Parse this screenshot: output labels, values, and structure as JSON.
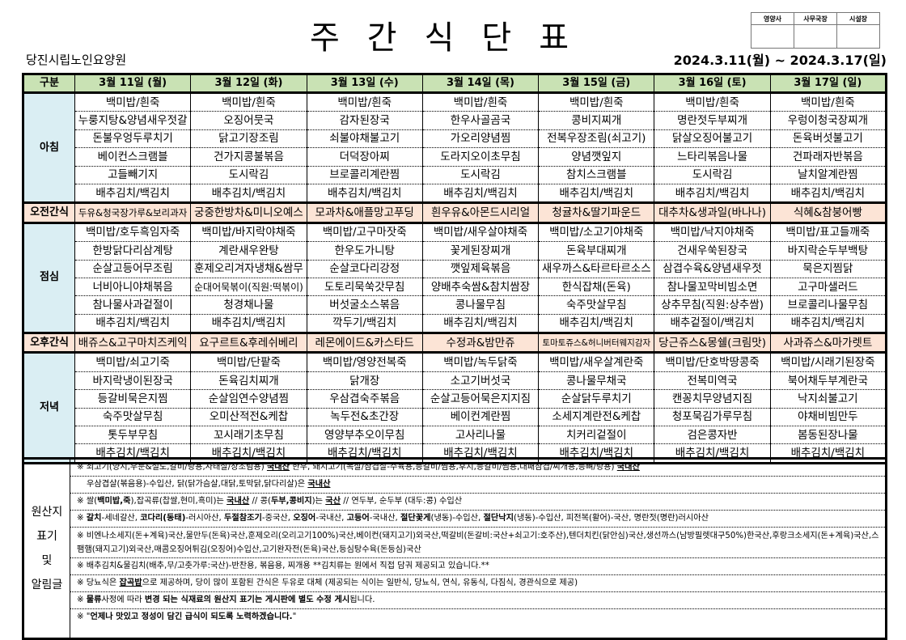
{
  "header": {
    "title": "주간식단표",
    "organization": "당진시립노인요양원",
    "period": "2024.3.11(월) ~ 2024.3.17(일)",
    "approval": [
      "영양사",
      "사무국장",
      "시설장"
    ]
  },
  "table": {
    "corner": "구분",
    "days": [
      "3월 11일 (월)",
      "3월 12일 (화)",
      "3월 13일 (수)",
      "3월 14일 (목)",
      "3월 15일 (금)",
      "3월 16일 (토)",
      "3월 17일 (일)"
    ],
    "sections": [
      {
        "label": "아침",
        "type": "meal",
        "rows": [
          [
            "백미밥/흰죽",
            "백미밥/흰죽",
            "백미밥/흰죽",
            "백미밥/흰죽",
            "백미밥/흰죽",
            "백미밥/흰죽",
            "백미밥/흰죽"
          ],
          [
            "누룽지탕&양념새우젓갈",
            "오징어뭇국",
            "감자된장국",
            "한우사골곰국",
            "콩비지찌개",
            "명란젓두부찌개",
            "우렁이청국장찌개"
          ],
          [
            "돈불우엉두루치기",
            "닭고기장조림",
            "쇠불야채불고기",
            "가오리양념찜",
            "전복우장조림(쇠고기)",
            "닭살오징어불고기",
            "돈육버섯불고기"
          ],
          [
            "베이컨스크램블",
            "건가지콩불볶음",
            "더덕장아찌",
            "도라지오이초무침",
            "양념깻잎지",
            "느타리볶음나물",
            "건파래자반볶음"
          ],
          [
            "고들빼기지",
            "도시락김",
            "브로콜리계란찜",
            "도시락김",
            "참치스크램블",
            "도시락김",
            "날치알계란찜"
          ],
          [
            "배추김치/백김치",
            "배추김치/백김치",
            "배추김치/백김치",
            "배추김치/백김치",
            "배추김치/백김치",
            "배추김치/백김치",
            "배추김치/백김치"
          ]
        ]
      },
      {
        "label": "오전간식",
        "type": "snack",
        "rows": [
          [
            "두유&청국장가루&보리과자",
            "궁중한방차&미니오예스",
            "모과차&애플망고푸딩",
            "흰우유&아몬드시리얼",
            "청귤차&딸기파운드",
            "대추차&생과일(바나나)",
            "식혜&참붕어빵"
          ]
        ]
      },
      {
        "label": "점심",
        "type": "meal",
        "rows": [
          [
            "백미밥/호두흑임자죽",
            "백미밥/바지락야채죽",
            "백미밥/고구마잣죽",
            "백미밥/새우살야채죽",
            "백미밥/소고기야채죽",
            "백미밥/낙지야채죽",
            "백미밥/표고들깨죽"
          ],
          [
            "한방닭다리삼계탕",
            "계란새우완탕",
            "한우도가니탕",
            "꽃게된장찌개",
            "돈육부대찌개",
            "건새우쑥된장국",
            "바지락순두부백탕"
          ],
          [
            "순살고등어무조림",
            "훈제오리겨자냉채&쌈무",
            "순살코다리강정",
            "깻잎제육볶음",
            "새우까스&타르타르소스",
            "삼겹수육&양념새우젓",
            "묵은지찜닭"
          ],
          [
            "너비아니야채볶음",
            "순대어묵볶이(직원:떡볶이)",
            "도토리묵쑥갓무침",
            "양배추숙쌈&참치쌈장",
            "한식잡채(돈육)",
            "참나물꼬막비빔소면",
            "고구마샐러드"
          ],
          [
            "참나물사과겉절이",
            "청경채나물",
            "버섯굴소스볶음",
            "콩나물무침",
            "숙주맛살무침",
            "상추무침(직원:상추쌈)",
            "브로콜리나물무침"
          ],
          [
            "배추김치/백김치",
            "배추김치/백김치",
            "깍두기/백김치",
            "배추김치/백김치",
            "배추김치/백김치",
            "배추겉절이/백김치",
            "배추김치/백김치"
          ]
        ]
      },
      {
        "label": "오후간식",
        "type": "snack",
        "rows": [
          [
            "배쥬스&고구마치즈케익",
            "요구르트&후레쉬베리",
            "레몬에이드&카스타드",
            "수정과&밤만쥬",
            "토마토쥬스&허니버터웨지감자",
            "당근쥬스&몽쉘(크림맛)",
            "사과쥬스&마가렛트"
          ]
        ]
      },
      {
        "label": "저녁",
        "type": "meal",
        "rows": [
          [
            "백미밥/쇠고기죽",
            "백미밥/단팥죽",
            "백미밥/영양전복죽",
            "백미밥/녹두닭죽",
            "백미밥/새우살계란죽",
            "백미밥/단호박땅콩죽",
            "백미밥/시래기된장죽"
          ],
          [
            "바지락냉이된장국",
            "돈육김치찌개",
            "닭개장",
            "소고기버섯국",
            "콩나물무채국",
            "전복미역국",
            "북어채두부계란국"
          ],
          [
            "등갈비묵은지찜",
            "순살임연수양념찜",
            "우삼겹숙주볶음",
            "순살고등어묵은지지짐",
            "순살닭두루치기",
            "캔꽁치무양념지짐",
            "낙지쇠불고기"
          ],
          [
            "숙주맛살무침",
            "오미산적전&케찹",
            "녹두전&초간장",
            "베이컨계란찜",
            "소세지계란전&케찹",
            "청포묵김가루무침",
            "야채비빔만두"
          ],
          [
            "톳두부무침",
            "꼬시래기초무침",
            "영양부추오이무침",
            "고사리나물",
            "치커리겉절이",
            "검은콩자반",
            "봄동된장나물"
          ],
          [
            "배추김치/백김치",
            "배추김치/백김치",
            "배추김치/백김치",
            "배추김치/백김치",
            "배추김치/백김치",
            "배추김치/백김치",
            "배추김치/백김치"
          ]
        ]
      }
    ]
  },
  "notes": {
    "label": [
      "원산지",
      "표기",
      "및",
      "알림글"
    ],
    "lines": [
      {
        "style": "",
        "segs": [
          {
            "t": "※ 쇠고기(양지,우둔&설도,갈비/탕용,사태살/장조림용) "
          },
          {
            "t": "국내산",
            "b": true,
            "u": true
          },
          {
            "t": " 한우, 돼지고기(목살/삼겹살-수육용,등갈비/찜용,후지,등갈비/찜용,대패삼겹/찌개용,등뼈/탕용) "
          },
          {
            "t": "국내산",
            "b": true,
            "u": true
          }
        ]
      },
      {
        "style": "ind",
        "segs": [
          {
            "t": "우삼겹살(볶음용)-수입산, 닭(닭가슴살,대닭,토막닭,닭다리살)은 "
          },
          {
            "t": "국내산",
            "b": true,
            "u": true
          }
        ]
      },
      {
        "style": "",
        "segs": [
          {
            "t": "※ 쌀("
          },
          {
            "t": "백미밥,죽",
            "b": true
          },
          {
            "t": "),잡곡류(찹쌀,현미,흑미)는 "
          },
          {
            "t": "국내산",
            "b": true,
            "u": true
          },
          {
            "t": "  // 콩("
          },
          {
            "t": "두부,콩비지",
            "b": true
          },
          {
            "t": ")는 "
          },
          {
            "t": "국산",
            "b": true,
            "u": true
          },
          {
            "t": "    // 연두부, 순두부 (대두:콩) 수입산"
          }
        ]
      },
      {
        "style": "",
        "segs": [
          {
            "t": "※ "
          },
          {
            "t": "갈치",
            "b": true
          },
          {
            "t": "-세네갈산, "
          },
          {
            "t": "코다리(동태)",
            "b": true
          },
          {
            "t": "-러시아산, "
          },
          {
            "t": "두절참조기",
            "b": true
          },
          {
            "t": "-중국산, "
          },
          {
            "t": "오징어",
            "b": true
          },
          {
            "t": "-국내산, "
          },
          {
            "t": "고등어",
            "b": true
          },
          {
            "t": "-국내산, "
          },
          {
            "t": "절단꽃게",
            "b": true
          },
          {
            "t": "(냉동)-수입산, "
          },
          {
            "t": "절단낙지",
            "b": true
          },
          {
            "t": "(냉동)-수입산, 피전복(활어)-국산, 명란젓(명란)러시아산"
          }
        ]
      },
      {
        "style": "two",
        "segs": [
          {
            "t": "※ 비엔나소세지(돈+계육)국산,물만두(돈육)국산,훈제오리(오리고기100%)국산,베이컨(돼지고기)외국산,떡갈비(돈갈비:국산+쇠고기:호주산),텐더치킨(닭안심)국산,생선까스(남방필렛대구50%)한국산,후랑크소세지(돈+계육)국산,스팸햄(돼지고기)외국산,매콤오징어튀김(오징어)수입산,고기완자전(돈육)국산,등심탕수육(돈등심)국산"
          }
        ]
      },
      {
        "style": "",
        "segs": [
          {
            "t": "※ 배추김치&물김치(배추,무/고춧가루:국산)-반찬용, 볶음용, 찌개용  **김치류는 원에서 직접 담궈 제공되고 있습니다.**"
          }
        ]
      },
      {
        "style": "",
        "segs": [
          {
            "t": "※ 당뇨식은 "
          },
          {
            "t": "잡곡밥",
            "b": true,
            "u": true
          },
          {
            "t": "으로 제공하며, 당이 많이 포함된 간식은 두유로 대체 (제공되는 식이는 일반식, 당뇨식, 연식, 유동식, 다짐식, 경관식으로 제공)"
          }
        ]
      },
      {
        "style": "",
        "segs": [
          {
            "t": "※ "
          },
          {
            "t": "물류",
            "b": true
          },
          {
            "t": "사정에 따라 "
          },
          {
            "t": "변경 되는 식재료의 원산지 표기는 게시판에 별도 수정 게시",
            "b": true
          },
          {
            "t": "됩니다."
          }
        ]
      },
      {
        "style": "",
        "segs": [
          {
            "t": "※ \""
          },
          {
            "t": "언제나 맛있고 정성이 담긴 급식이 되도록 노력하겠습니다.",
            "b": true
          },
          {
            "t": "\""
          }
        ]
      }
    ]
  },
  "colors": {
    "header_bg": "#c9e2b4",
    "meal_label_bg": "#daeef3",
    "snack_bg": "#fce4d6"
  }
}
